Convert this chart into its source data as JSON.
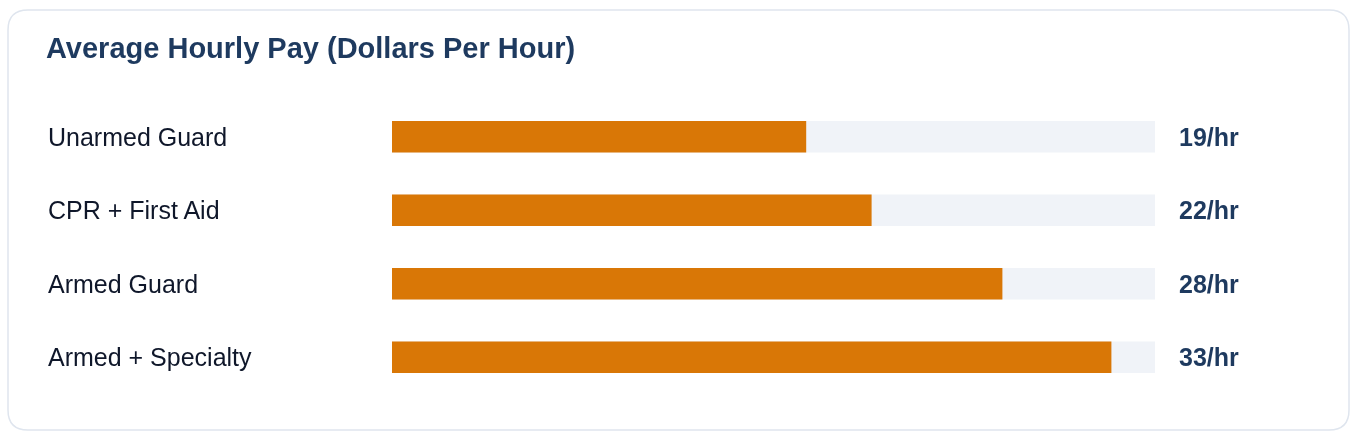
{
  "chart_data": {
    "type": "bar",
    "orientation": "horizontal",
    "title": "Average Hourly Pay (Dollars Per Hour)",
    "categories": [
      "Unarmed Guard",
      "CPR + First Aid",
      "Armed Guard",
      "Armed + Specialty"
    ],
    "values": [
      19,
      22,
      28,
      33
    ],
    "value_labels": [
      "19/hr",
      "22/hr",
      "28/hr",
      "33/hr"
    ],
    "color": "#d97706",
    "xlim": [
      0,
      35
    ],
    "tick_labels": "y"
  }
}
